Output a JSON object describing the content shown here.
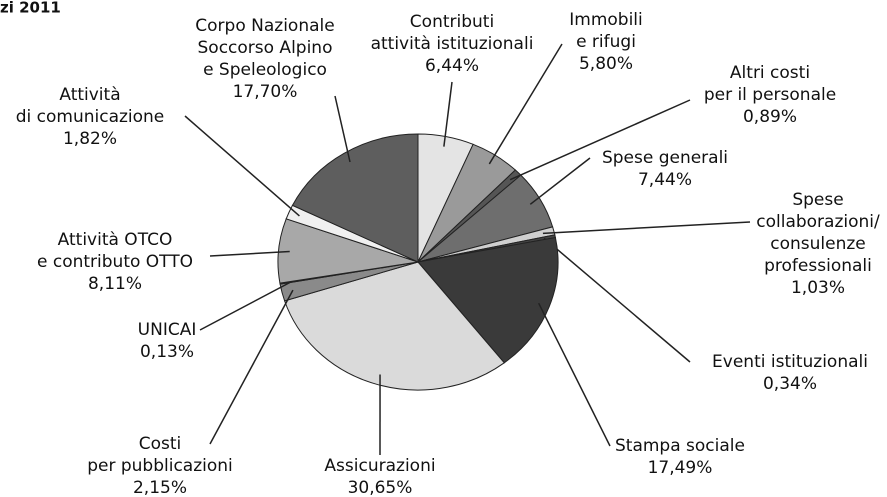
{
  "chart_data": {
    "type": "pie",
    "title": "zi 2011",
    "categories": [
      [
        "Contributi",
        "attività istituzionali"
      ],
      [
        "Immobili",
        "e rifugi"
      ],
      [
        "Altri costi",
        "per il personale"
      ],
      [
        "Spese generali"
      ],
      [
        "Spese",
        "collaborazioni/",
        "consulenze",
        "professionali"
      ],
      [
        "Eventi istituzionali"
      ],
      [
        "Stampa sociale"
      ],
      [
        "Assicurazioni"
      ],
      [
        "Costi",
        "per pubblicazioni"
      ],
      [
        "UNICAI"
      ],
      [
        "Attività OTCO",
        "e contributo OTTO"
      ],
      [
        "Attività",
        "di comunicazione"
      ],
      [
        "Corpo Nazionale",
        "Soccorso Alpino",
        "e Speleologico"
      ]
    ],
    "values": [
      6.44,
      5.8,
      0.89,
      7.44,
      1.03,
      0.34,
      17.49,
      30.65,
      2.15,
      0.13,
      8.11,
      1.82,
      17.7
    ],
    "value_labels": [
      "6,44%",
      "5,80%",
      "0,89%",
      "7,44%",
      "1,03%",
      "0,34%",
      "17,49%",
      "30,65%",
      "2,15%",
      "0,13%",
      "8,11%",
      "1,82%",
      "17,70%"
    ],
    "colors": [
      "#e4e4e4",
      "#9a9a9a",
      "#555555",
      "#6e6e6e",
      "#cfcfcf",
      "#444444",
      "#3a3a3a",
      "#dadada",
      "#8a8a8a",
      "#bbbbbb",
      "#a8a8a8",
      "#f0f0f0",
      "#5e5e5e"
    ]
  }
}
